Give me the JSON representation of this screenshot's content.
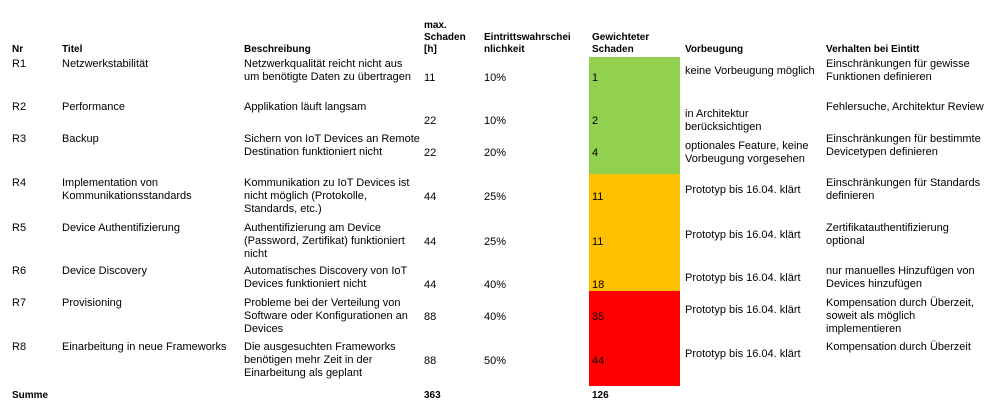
{
  "colors": {
    "green": "#92D050",
    "amber": "#FFC000",
    "red": "#FF0000"
  },
  "headers": {
    "nr": "Nr",
    "titel": "Titel",
    "beschreibung": "Beschreibung",
    "schaden": "max. Schaden [h]",
    "eintritt": "Eintrittswahrscheinlichkeit",
    "gewichtet": "Gewichteter Schaden",
    "vorbeugung": "Vorbeugung",
    "verhalten": "Verhalten bei Eintitt"
  },
  "rows": [
    {
      "nr": "R1",
      "titel": "Netzwerkstabilität",
      "beschreibung": "Netzwerkqualität reicht nicht aus um benötigte Daten zu übertragen",
      "schaden": "11",
      "eintritt": "10%",
      "gewichtet": "1",
      "vorbeugung": "keine Vorbeugung möglich",
      "verhalten": "Einschränkungen für gewisse Funktionen definieren",
      "level": "green"
    },
    {
      "nr": "R2",
      "titel": "Performance",
      "beschreibung": "Applikation läuft langsam",
      "schaden": "22",
      "eintritt": "10%",
      "gewichtet": "2",
      "vorbeugung": "in Architektur berücksichtigen",
      "verhalten": "Fehlersuche, Architektur Review",
      "level": "green"
    },
    {
      "nr": "R3",
      "titel": "Backup",
      "beschreibung": "Sichern von IoT Devices an Remote Destination funktioniert nicht",
      "schaden": "22",
      "eintritt": "20%",
      "gewichtet": "4",
      "vorbeugung": "optionales Feature, keine Vorbeugung vorgesehen",
      "verhalten": "Einschränkungen für bestimmte Devicetypen definieren",
      "level": "green"
    },
    {
      "nr": "R4",
      "titel": "Implementation von Kommunikationsstandards",
      "beschreibung": "Kommunikation zu IoT Devices ist nicht möglich (Protokolle, Standards, etc.)",
      "schaden": "44",
      "eintritt": "25%",
      "gewichtet": "11",
      "vorbeugung": "Prototyp bis 16.04. klärt",
      "verhalten": "Einschränkungen für Standards definieren",
      "level": "amber"
    },
    {
      "nr": "R5",
      "titel": "Device Authentifizierung",
      "beschreibung": "Authentifizierung am Device (Password, Zertifikat) funktioniert nicht",
      "schaden": "44",
      "eintritt": "25%",
      "gewichtet": "11",
      "vorbeugung": "Prototyp bis 16.04. klärt",
      "verhalten": "Zertifikatauthentifizierung optional",
      "level": "amber"
    },
    {
      "nr": "R6",
      "titel": "Device Discovery",
      "beschreibung": "Automatisches Discovery von IoT Devices funktioniert nicht",
      "schaden": "44",
      "eintritt": "40%",
      "gewichtet": "18",
      "vorbeugung": "Prototyp bis 16.04. klärt",
      "verhalten": "nur manuelles Hinzufügen von Devices hinzufügen",
      "level": "amber"
    },
    {
      "nr": "R7",
      "titel": "Provisioning",
      "beschreibung": "Probleme bei der Verteilung von Software oder Konfigurationen an Devices",
      "schaden": "88",
      "eintritt": "40%",
      "gewichtet": "35",
      "vorbeugung": "Prototyp bis 16.04. klärt",
      "verhalten": "Kompensation durch Überzeit, soweit als möglich implementieren",
      "level": "red"
    },
    {
      "nr": "R8",
      "titel": "Einarbeitung in neue Frameworks",
      "beschreibung": "Die ausgesuchten Frameworks benötigen mehr Zeit in der Einarbeitung als geplant",
      "schaden": "88",
      "eintritt": "50%",
      "gewichtet": "44",
      "vorbeugung": "Prototyp bis 16.04. klärt",
      "verhalten": "Kompensation durch Überzeit",
      "level": "red"
    }
  ],
  "summe": {
    "label": "Summe",
    "schaden": "363",
    "gewichtet": "126"
  }
}
